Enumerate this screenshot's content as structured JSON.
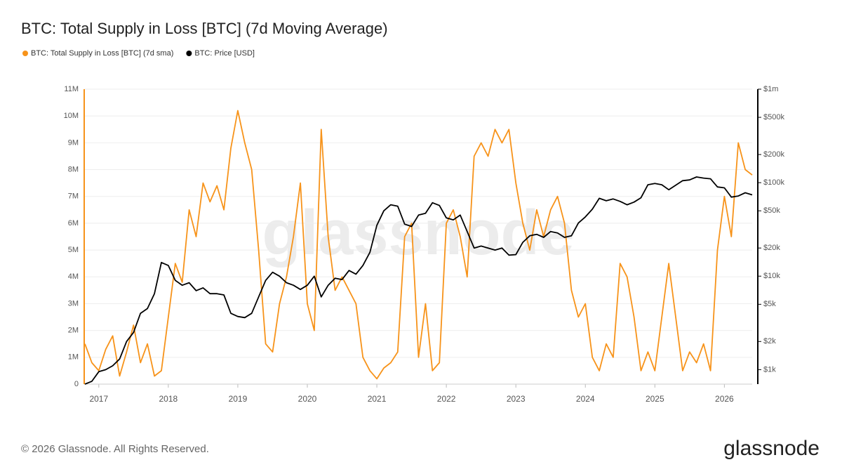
{
  "chart_data": {
    "type": "line",
    "title": "BTC: Total Supply in Loss [BTC] (7d Moving Average)",
    "watermark": "glassnode",
    "footer": "© 2026 Glassnode. All Rights Reserved.",
    "brand": "glassnode",
    "legend": "top-left",
    "grid": true,
    "y2_log": true,
    "x": [
      2016.8,
      2016.9,
      2017.0,
      2017.1,
      2017.2,
      2017.3,
      2017.4,
      2017.5,
      2017.6,
      2017.7,
      2017.8,
      2017.9,
      2018.0,
      2018.1,
      2018.2,
      2018.3,
      2018.4,
      2018.5,
      2018.6,
      2018.7,
      2018.8,
      2018.9,
      2019.0,
      2019.1,
      2019.2,
      2019.3,
      2019.4,
      2019.5,
      2019.6,
      2019.7,
      2019.8,
      2019.9,
      2020.0,
      2020.1,
      2020.2,
      2020.3,
      2020.4,
      2020.5,
      2020.6,
      2020.7,
      2020.8,
      2020.9,
      2021.0,
      2021.1,
      2021.2,
      2021.3,
      2021.4,
      2021.5,
      2021.6,
      2021.7,
      2021.8,
      2021.9,
      2022.0,
      2022.1,
      2022.2,
      2022.3,
      2022.4,
      2022.5,
      2022.6,
      2022.7,
      2022.8,
      2022.9,
      2023.0,
      2023.1,
      2023.2,
      2023.3,
      2023.4,
      2023.5,
      2023.6,
      2023.7,
      2023.8,
      2023.9,
      2024.0,
      2024.1,
      2024.2,
      2024.3,
      2024.4,
      2024.5,
      2024.6,
      2024.7,
      2024.8,
      2024.9,
      2025.0,
      2025.1,
      2025.2,
      2025.3,
      2025.4,
      2025.5,
      2025.6,
      2025.7,
      2025.8,
      2025.9,
      2026.0,
      2026.1,
      2026.2,
      2026.3,
      2026.4
    ],
    "xlim": [
      2016.79,
      2026.4
    ],
    "xticks": [
      2017,
      2018,
      2019,
      2020,
      2021,
      2022,
      2023,
      2024,
      2025,
      2026
    ],
    "ylim": [
      0,
      11000000
    ],
    "yticks": [
      0,
      {
        "value": 1000000,
        "label": "1M"
      },
      {
        "value": 2000000,
        "label": "2M"
      },
      {
        "value": 3000000,
        "label": "3M"
      },
      {
        "value": 4000000,
        "label": "4M"
      },
      {
        "value": 5000000,
        "label": "5M"
      },
      {
        "value": 6000000,
        "label": "6M"
      },
      {
        "value": 7000000,
        "label": "7M"
      },
      {
        "value": 8000000,
        "label": "8M"
      },
      {
        "value": 9000000,
        "label": "9M"
      },
      {
        "value": 10000000,
        "label": "10M"
      },
      {
        "value": 11000000,
        "label": "11M"
      }
    ],
    "y2lim": [
      700,
      1000000
    ],
    "y2ticks": [
      {
        "value": 1000,
        "label": "$1k"
      },
      {
        "value": 2000,
        "label": "$2k"
      },
      {
        "value": 5000,
        "label": "$5k"
      },
      {
        "value": 10000,
        "label": "$10k"
      },
      {
        "value": 20000,
        "label": "$20k"
      },
      {
        "value": 50000,
        "label": "$50k"
      },
      {
        "value": 100000,
        "label": "$100k"
      },
      {
        "value": 200000,
        "label": "$200k"
      },
      {
        "value": 500000,
        "label": "$500k"
      },
      {
        "value": 1000000,
        "label": "$1m"
      }
    ],
    "series": [
      {
        "name": "BTC: Total Supply in Loss [BTC] (7d sma)",
        "color": "#f7931a",
        "values": [
          1500000,
          800000,
          500000,
          1300000,
          1800000,
          300000,
          1200000,
          2200000,
          800000,
          1500000,
          300000,
          500000,
          2500000,
          4500000,
          3800000,
          6500000,
          5500000,
          7500000,
          6800000,
          7400000,
          6500000,
          8800000,
          10200000,
          9000000,
          8000000,
          5000000,
          1500000,
          1200000,
          3000000,
          4000000,
          5500000,
          7500000,
          3000000,
          2000000,
          9500000,
          5500000,
          3500000,
          4000000,
          3500000,
          3000000,
          1000000,
          500000,
          200000,
          600000,
          800000,
          1200000,
          5500000,
          6000000,
          1000000,
          3000000,
          500000,
          800000,
          6000000,
          6500000,
          5500000,
          4000000,
          8500000,
          9000000,
          8500000,
          9500000,
          9000000,
          9500000,
          7500000,
          6000000,
          5000000,
          6500000,
          5500000,
          6500000,
          7000000,
          6000000,
          3500000,
          2500000,
          3000000,
          1000000,
          500000,
          1500000,
          1000000,
          4500000,
          4000000,
          2500000,
          500000,
          1200000,
          500000,
          2500000,
          4500000,
          2500000,
          500000,
          1200000,
          800000,
          1500000,
          500000,
          5000000,
          7000000,
          5500000,
          9000000,
          8000000,
          7800000
        ]
      },
      {
        "name": "BTC: Price [USD]",
        "color": "#000000",
        "axis": "y2",
        "values": [
          700,
          750,
          950,
          1000,
          1100,
          1300,
          2000,
          2500,
          4000,
          4500,
          6500,
          14000,
          13000,
          9000,
          8000,
          8500,
          7000,
          7500,
          6500,
          6500,
          6300,
          4000,
          3700,
          3600,
          4000,
          6000,
          9000,
          11000,
          10000,
          8500,
          8000,
          7200,
          8000,
          10000,
          6000,
          8000,
          9500,
          9200,
          11500,
          10500,
          13000,
          18000,
          35000,
          50000,
          58000,
          56000,
          36000,
          34000,
          45000,
          47000,
          61000,
          57000,
          42000,
          40000,
          45000,
          30000,
          20000,
          21000,
          20000,
          19000,
          20000,
          16800,
          17000,
          23000,
          27000,
          28000,
          26000,
          30000,
          29000,
          26000,
          27000,
          37000,
          43000,
          52000,
          68000,
          64000,
          67000,
          63000,
          58000,
          62000,
          69000,
          95000,
          98000,
          95000,
          84000,
          94000,
          105000,
          107000,
          115000,
          112000,
          110000,
          90000,
          88000,
          70000,
          72000,
          78000,
          74000
        ]
      }
    ]
  }
}
